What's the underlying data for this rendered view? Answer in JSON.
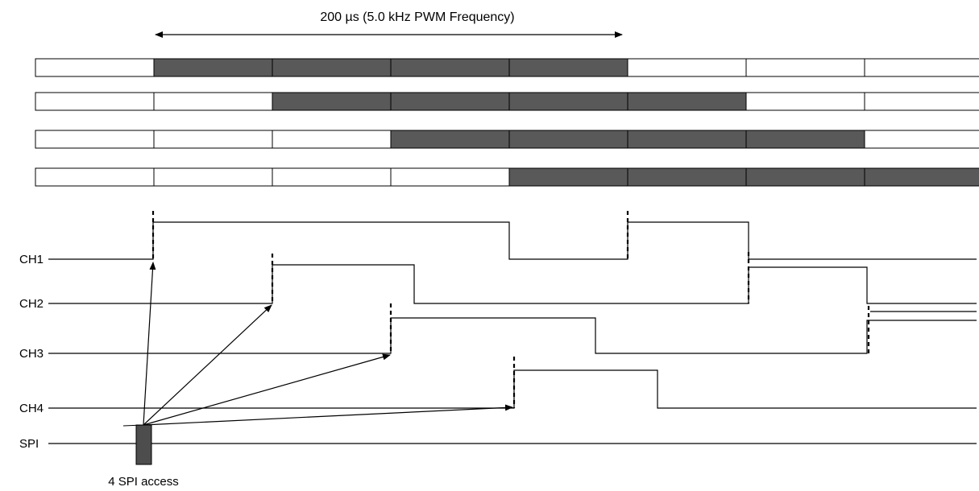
{
  "diagram": {
    "title": "200 µs (5.0 kHz PWM Frequency)",
    "spi_label": "4 SPI access",
    "colors": {
      "active": "#595959",
      "idle": "#ffffff",
      "line": "#000000"
    },
    "slot_rows": [
      [
        0,
        1,
        1,
        1,
        1,
        0,
        0,
        0
      ],
      [
        0,
        0,
        1,
        1,
        1,
        1,
        0,
        0
      ],
      [
        0,
        0,
        0,
        1,
        1,
        1,
        1,
        0
      ],
      [
        0,
        0,
        0,
        0,
        1,
        1,
        1,
        1
      ]
    ],
    "channels": [
      {
        "label": "CH1"
      },
      {
        "label": "CH2"
      },
      {
        "label": "CH3"
      },
      {
        "label": "CH4"
      },
      {
        "label": "SPI"
      }
    ]
  }
}
